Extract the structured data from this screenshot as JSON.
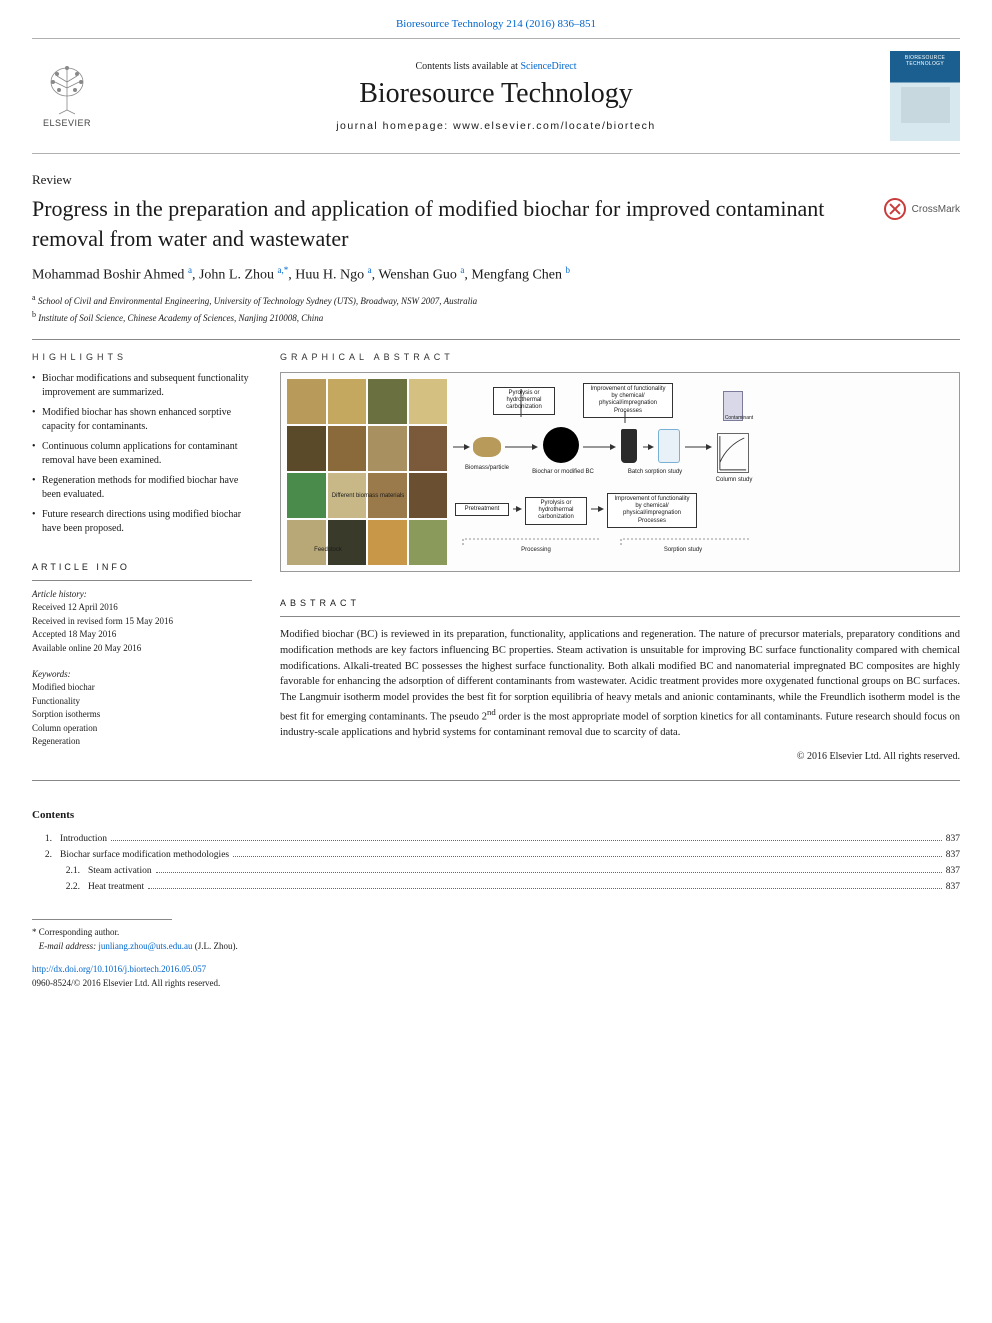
{
  "citation_link": "Bioresource Technology 214 (2016) 836–851",
  "contents_line_prefix": "Contents lists available at ",
  "contents_line_link": "ScienceDirect",
  "journal_name": "Bioresource Technology",
  "homepage_prefix": "journal homepage: ",
  "homepage_url": "www.elsevier.com/locate/biortech",
  "elsevier_label": "ELSEVIER",
  "article_type": "Review",
  "crossmark_label": "CrossMark",
  "article_title": "Progress in the preparation and application of modified biochar for improved contaminant removal from water and wastewater",
  "authors_html": "Mohammad Boshir Ahmed <sup class='sup-link'>a</sup>, John L. Zhou <sup class='sup-link'>a,</sup><sup class='sup-link'>*</sup>, Huu H. Ngo <sup class='sup-link'>a</sup>, Wenshan Guo <sup class='sup-link'>a</sup>, Mengfang Chen <sup class='sup-link'>b</sup>",
  "affiliations": [
    {
      "sup": "a",
      "text": "School of Civil and Environmental Engineering, University of Technology Sydney (UTS), Broadway, NSW 2007, Australia"
    },
    {
      "sup": "b",
      "text": "Institute of Soil Science, Chinese Academy of Sciences, Nanjing 210008, China"
    }
  ],
  "highlights_label": "HIGHLIGHTS",
  "highlights": [
    "Biochar modifications and subsequent functionality improvement are summarized.",
    "Modified biochar has shown enhanced sorptive capacity for contaminants.",
    "Continuous column applications for contaminant removal have been examined.",
    "Regeneration methods for modified biochar have been evaluated.",
    "Future research directions using modified biochar have been proposed."
  ],
  "graphical_label": "GRAPHICAL ABSTRACT",
  "ga": {
    "box_top1": "Pyrolysis or\nhydrothermal\ncarbonization",
    "box_top2": "Improvement of\nfunctionality by chemical/\nphysical/impregnation\nProcesses",
    "label_biomass": "Biomass/particle",
    "label_biochar": "Biochar or modified BC",
    "label_batch": "Batch sorption study",
    "label_column": "Column study",
    "label_feedstock": "Feedstock",
    "label_different": "Different biomass materials",
    "box_pretreat": "Pretreatment",
    "box_pyro2": "Pyrolysis or\nhydrothermal\ncarbonization",
    "box_improve2": "Improvement of\nfunctionality by chemical/\nphysical/impregnation\nProcesses",
    "label_processing": "Processing",
    "label_sorption": "Sorption study",
    "label_contaminant": "Contaminant"
  },
  "article_info_label": "ARTICLE INFO",
  "history_head": "Article history:",
  "history": [
    "Received 12 April 2016",
    "Received in revised form 15 May 2016",
    "Accepted 18 May 2016",
    "Available online 20 May 2016"
  ],
  "keywords_head": "Keywords:",
  "keywords": [
    "Modified biochar",
    "Functionality",
    "Sorption isotherms",
    "Column operation",
    "Regeneration"
  ],
  "abstract_label": "ABSTRACT",
  "abstract_text": "Modified biochar (BC) is reviewed in its preparation, functionality, applications and regeneration. The nature of precursor materials, preparatory conditions and modification methods are key factors influencing BC properties. Steam activation is unsuitable for improving BC surface functionality compared with chemical modifications. Alkali-treated BC possesses the highest surface functionality. Both alkali modified BC and nanomaterial impregnated BC composites are highly favorable for enhancing the adsorption of different contaminants from wastewater. Acidic treatment provides more oxygenated functional groups on BC surfaces. The Langmuir isotherm model provides the best fit for sorption equilibria of heavy metals and anionic contaminants, while the Freundlich isotherm model is the best fit for emerging contaminants. The pseudo 2nd order is the most appropriate model of sorption kinetics for all contaminants. Future research should focus on industry-scale applications and hybrid systems for contaminant removal due to scarcity of data.",
  "copyright": "© 2016 Elsevier Ltd. All rights reserved.",
  "contents_head": "Contents",
  "toc": [
    {
      "num": "1.",
      "sub": "",
      "title": "Introduction",
      "page": "837"
    },
    {
      "num": "2.",
      "sub": "",
      "title": "Biochar surface modification methodologies",
      "page": "837"
    },
    {
      "num": "",
      "sub": "2.1.",
      "title": "Steam activation",
      "page": "837"
    },
    {
      "num": "",
      "sub": "2.2.",
      "title": "Heat treatment",
      "page": "837"
    }
  ],
  "footnote_star": "*",
  "footnote_corresponding": "Corresponding author.",
  "footnote_email_label": "E-mail address: ",
  "footnote_email": "junliang.zhou@uts.edu.au",
  "footnote_email_paren": " (J.L. Zhou).",
  "doi_link": "http://dx.doi.org/10.1016/j.biortech.2016.05.057",
  "issn_line": "0960-8524/© 2016 Elsevier Ltd. All rights reserved."
}
